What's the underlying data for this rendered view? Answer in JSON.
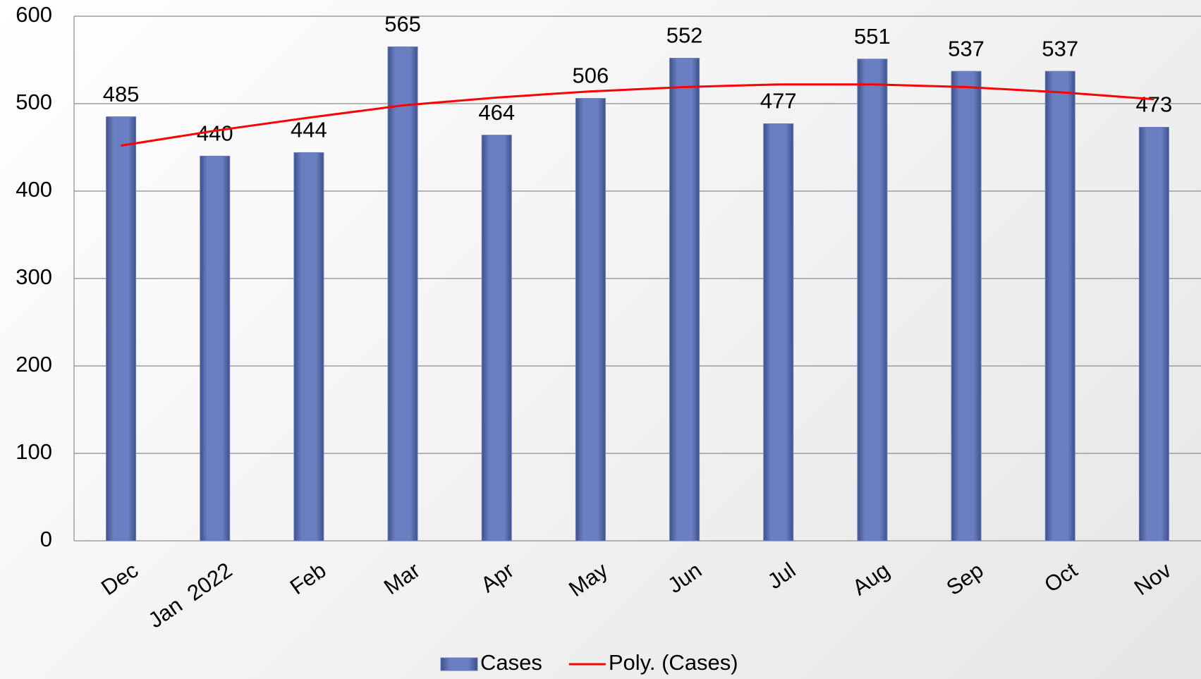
{
  "chart_data": {
    "type": "bar",
    "categories": [
      "Dec",
      "Jan  2022",
      "Feb",
      "Mar",
      "Apr",
      "May",
      "Jun",
      "Jul",
      "Aug",
      "Sep",
      "Oct",
      "Nov"
    ],
    "series": [
      {
        "name": "Cases",
        "type": "bar",
        "color": "#6a7fc1",
        "values": [
          485,
          440,
          444,
          565,
          464,
          506,
          552,
          477,
          551,
          537,
          537,
          473
        ]
      },
      {
        "name": "Poly. (Cases)",
        "type": "line",
        "color": "#ff0000",
        "values": [
          452,
          469,
          484,
          498,
          507,
          514,
          519,
          522,
          522,
          519,
          513,
          505
        ]
      }
    ],
    "ylim": [
      0,
      600
    ],
    "yticks": [
      0,
      100,
      200,
      300,
      400,
      500,
      600
    ],
    "grid": true,
    "legend": "bottom"
  }
}
